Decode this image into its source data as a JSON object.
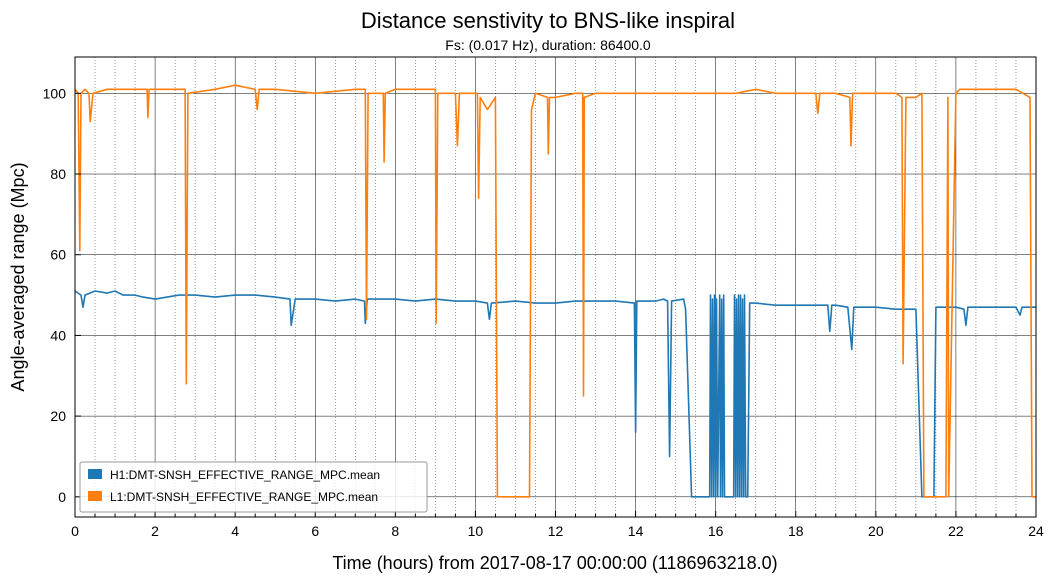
{
  "chart_data": {
    "type": "line",
    "title": "Distance senstivity to BNS-like inspiral",
    "subtitle": "Fs: (0.017 Hz), duration: 86400.0",
    "xlabel": "Time (hours) from 2017-08-17 00:00:00 (1186963218.0)",
    "ylabel": "Angle-averaged range (Mpc)",
    "xlim": [
      0,
      24
    ],
    "ylim": [
      -5,
      109
    ],
    "xticks": [
      0,
      2,
      4,
      6,
      8,
      10,
      12,
      14,
      16,
      18,
      20,
      22,
      24
    ],
    "yticks": [
      0,
      20,
      40,
      60,
      80,
      100
    ],
    "grid": true,
    "legend_position": "lower-left",
    "series": [
      {
        "name": "H1:DMT-SNSH_EFFECTIVE_RANGE_MPC.mean",
        "color": "#1f77b4",
        "x": [
          0,
          0.15,
          0.2,
          0.25,
          0.5,
          0.8,
          1.0,
          1.2,
          1.5,
          1.7,
          2.0,
          2.3,
          2.6,
          3.0,
          3.5,
          4.0,
          4.5,
          5.0,
          5.37,
          5.4,
          5.5,
          6.0,
          6.5,
          7.0,
          7.23,
          7.25,
          7.3,
          7.5,
          8.0,
          8.5,
          9.0,
          9.5,
          10.0,
          10.3,
          10.35,
          10.4,
          11.0,
          11.5,
          12.0,
          12.5,
          13.0,
          13.5,
          13.97,
          14.0,
          14.03,
          14.5,
          14.7,
          14.8,
          14.85,
          14.9,
          15.2,
          15.25,
          15.4,
          15.85,
          15.87,
          15.9,
          15.92,
          15.95,
          15.97,
          16.0,
          16.02,
          16.05,
          16.1,
          16.12,
          16.15,
          16.17,
          16.2,
          16.22,
          16.25,
          16.3,
          16.45,
          16.47,
          16.5,
          16.52,
          16.55,
          16.57,
          16.6,
          16.62,
          16.65,
          16.67,
          16.7,
          16.72,
          16.75,
          16.8,
          16.85,
          17.0,
          17.5,
          18.0,
          18.5,
          18.8,
          18.85,
          18.9,
          19.0,
          19.3,
          19.4,
          19.45,
          19.5,
          20.0,
          20.5,
          21.0,
          21.15,
          21.2,
          21.45,
          21.5,
          21.55,
          22.0,
          22.2,
          22.25,
          22.3,
          22.5,
          23.0,
          23.5,
          23.6,
          23.65,
          23.7,
          24.0
        ],
        "y": [
          51,
          50,
          47,
          50,
          51,
          50.5,
          51,
          50,
          50,
          49.5,
          49,
          49.5,
          50,
          50,
          49.5,
          50,
          50,
          49.5,
          49,
          42.5,
          49,
          49,
          48.5,
          49,
          48.5,
          43,
          49,
          49,
          49,
          48.5,
          49,
          48.5,
          48.5,
          48,
          44,
          48,
          48.5,
          48,
          48,
          48.5,
          48.5,
          48.5,
          48,
          16,
          48.5,
          48.5,
          49,
          48.5,
          10,
          48.5,
          49,
          46.5,
          0,
          0,
          50,
          0,
          49,
          0,
          50,
          0,
          49,
          0,
          50,
          0,
          49,
          0,
          50,
          0,
          0,
          0,
          0,
          50,
          0,
          49,
          0,
          50,
          0,
          50,
          0,
          49,
          0,
          50,
          0,
          0,
          48,
          48,
          47.5,
          47.5,
          47.5,
          47.5,
          41,
          47.5,
          47.5,
          47,
          36.5,
          47,
          47,
          47,
          46.5,
          46.5,
          0,
          0,
          0,
          47,
          47,
          47,
          46.5,
          42.5,
          47,
          47,
          47,
          47,
          45,
          47,
          47,
          47
        ]
      },
      {
        "name": "L1:DMT-SNSH_EFFECTIVE_RANGE_MPC.mean",
        "color": "#ff7f0e",
        "x": [
          0,
          0.08,
          0.12,
          0.15,
          0.25,
          0.35,
          0.38,
          0.45,
          0.8,
          1.2,
          1.8,
          1.82,
          1.85,
          2.2,
          2.75,
          2.78,
          2.82,
          3.5,
          4.0,
          4.5,
          4.55,
          4.6,
          5.0,
          6.0,
          7.0,
          7.25,
          7.28,
          7.32,
          7.7,
          7.72,
          7.75,
          8.0,
          8.5,
          9.0,
          9.02,
          9.06,
          9.5,
          9.55,
          9.6,
          10.05,
          10.08,
          10.12,
          10.3,
          10.5,
          10.55,
          11.35,
          11.4,
          11.5,
          11.8,
          11.82,
          11.85,
          12.0,
          12.5,
          12.68,
          12.7,
          12.72,
          13.0,
          13.5,
          14.0,
          14.5,
          15.0,
          15.5,
          16.0,
          16.5,
          17.0,
          17.5,
          18.0,
          18.5,
          18.55,
          18.6,
          19.0,
          19.35,
          19.38,
          19.42,
          20.0,
          20.5,
          20.65,
          20.68,
          20.75,
          21.0,
          21.15,
          21.2,
          21.75,
          21.8,
          21.82,
          22.0,
          22.1,
          22.5,
          23.0,
          23.5,
          23.85,
          23.9,
          24.0
        ],
        "y": [
          101,
          100,
          61,
          100,
          101,
          100,
          93,
          100,
          101,
          101,
          101,
          94,
          101,
          101,
          101,
          28,
          100,
          101,
          102,
          101,
          96,
          101,
          101,
          100,
          101,
          101,
          44,
          100,
          100,
          83,
          100,
          101,
          101,
          101,
          43,
          100,
          100,
          87,
          100,
          100,
          74,
          99,
          96,
          99,
          0,
          0,
          96,
          100,
          99,
          85,
          99,
          99,
          100,
          100,
          25,
          99,
          100,
          100,
          100,
          100,
          100,
          100,
          100,
          100,
          101,
          100,
          100,
          100,
          95,
          100,
          100,
          99,
          87,
          100,
          100,
          100,
          99,
          33,
          99,
          99,
          100,
          0,
          0,
          99,
          0,
          100,
          101,
          101,
          101,
          101,
          99,
          0,
          0
        ]
      }
    ]
  }
}
